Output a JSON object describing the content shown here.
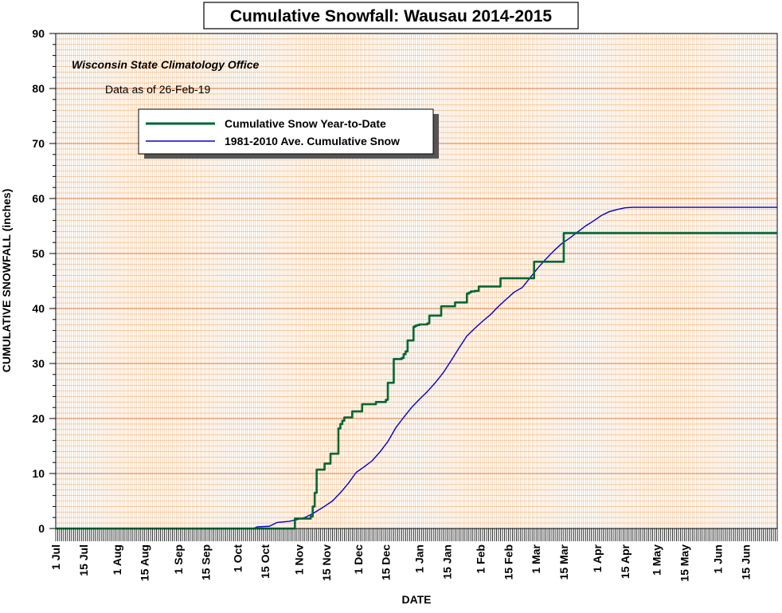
{
  "chart_data": {
    "type": "line",
    "title": "Cumulative Snowfall: Wausau 2014-2015",
    "source": "Wisconsin State Climatology Office",
    "as_of": "Data as of 26-Feb-19",
    "xlabel": "DATE",
    "ylabel": "CUMULATIVE SNOWFALL (inches)",
    "ylim": [
      0,
      90
    ],
    "yticks": [
      0,
      10,
      20,
      30,
      40,
      50,
      60,
      70,
      80,
      90
    ],
    "x_range_days": [
      0,
      365
    ],
    "xticks": [
      {
        "label": "1 Jul",
        "day": 0
      },
      {
        "label": "15 Jul",
        "day": 14
      },
      {
        "label": "1 Aug",
        "day": 31
      },
      {
        "label": "15 Aug",
        "day": 45
      },
      {
        "label": "1 Sep",
        "day": 62
      },
      {
        "label": "15 Sep",
        "day": 76
      },
      {
        "label": "1 Oct",
        "day": 92
      },
      {
        "label": "15 Oct",
        "day": 106
      },
      {
        "label": "1 Nov",
        "day": 123
      },
      {
        "label": "15 Nov",
        "day": 137
      },
      {
        "label": "1 Dec",
        "day": 153
      },
      {
        "label": "15 Dec",
        "day": 167
      },
      {
        "label": "1 Jan",
        "day": 184
      },
      {
        "label": "15 Jan",
        "day": 198
      },
      {
        "label": "1 Feb",
        "day": 215
      },
      {
        "label": "15 Feb",
        "day": 229
      },
      {
        "label": "1 Mar",
        "day": 243
      },
      {
        "label": "15 Mar",
        "day": 257
      },
      {
        "label": "1 Apr",
        "day": 274
      },
      {
        "label": "15 Apr",
        "day": 288
      },
      {
        "label": "1 May",
        "day": 304
      },
      {
        "label": "15 May",
        "day": 318
      },
      {
        "label": "1 Jun",
        "day": 335
      },
      {
        "label": "15 Jun",
        "day": 349
      }
    ],
    "grid": true,
    "legend_position": "upper-left",
    "background_color": "#ffffff",
    "grid_major_color": "#e07a3a",
    "grid_minor_color": "#f3b47a",
    "series": [
      {
        "name": "Cumulative Snow Year-to-Date",
        "color": "#006633",
        "step": true,
        "points": [
          [
            0,
            0
          ],
          [
            121,
            0
          ],
          [
            121,
            1.8
          ],
          [
            129,
            2.2
          ],
          [
            130,
            4
          ],
          [
            131,
            6.5
          ],
          [
            132,
            10.7
          ],
          [
            135,
            10.7
          ],
          [
            136,
            11.8
          ],
          [
            138,
            11.8
          ],
          [
            139,
            13.6
          ],
          [
            142,
            13.6
          ],
          [
            143,
            18.2
          ],
          [
            144,
            19
          ],
          [
            145,
            19.6
          ],
          [
            146,
            20.2
          ],
          [
            149,
            20.2
          ],
          [
            150,
            21.3
          ],
          [
            154,
            21.3
          ],
          [
            155,
            22.6
          ],
          [
            161,
            22.6
          ],
          [
            162,
            23
          ],
          [
            166,
            23
          ],
          [
            167,
            23.4
          ],
          [
            168,
            26.5
          ],
          [
            170,
            26.5
          ],
          [
            171,
            30.8
          ],
          [
            175,
            31
          ],
          [
            176,
            31.7
          ],
          [
            177,
            32.2
          ],
          [
            178,
            34.2
          ],
          [
            180,
            34.2
          ],
          [
            181,
            36.7
          ],
          [
            182,
            36.9
          ],
          [
            183,
            37
          ],
          [
            184,
            37.1
          ],
          [
            188,
            37.3
          ],
          [
            189,
            38.7
          ],
          [
            194,
            38.7
          ],
          [
            195,
            40.4
          ],
          [
            201,
            40.4
          ],
          [
            202,
            41.1
          ],
          [
            207,
            41.1
          ],
          [
            208,
            42.7
          ],
          [
            209,
            42.9
          ],
          [
            210,
            43.1
          ],
          [
            212,
            43.2
          ],
          [
            214,
            44
          ],
          [
            224,
            44
          ],
          [
            225,
            45.5
          ],
          [
            241,
            45.5
          ],
          [
            242,
            48.5
          ],
          [
            256,
            48.5
          ],
          [
            257,
            53.7
          ],
          [
            365,
            53.7
          ]
        ]
      },
      {
        "name": "1981-2010 Ave. Cumulative Snow",
        "color": "#0000cc",
        "step": false,
        "points": [
          [
            0,
            0
          ],
          [
            100,
            0
          ],
          [
            102,
            0.3
          ],
          [
            108,
            0.4
          ],
          [
            112,
            1.1
          ],
          [
            118,
            1.3
          ],
          [
            122,
            1.6
          ],
          [
            126,
            2
          ],
          [
            130,
            2.7
          ],
          [
            135,
            3.8
          ],
          [
            140,
            5
          ],
          [
            144,
            6.5
          ],
          [
            148,
            8.2
          ],
          [
            152,
            10.2
          ],
          [
            156,
            11.2
          ],
          [
            160,
            12.3
          ],
          [
            164,
            13.9
          ],
          [
            168,
            15.8
          ],
          [
            172,
            18.3
          ],
          [
            176,
            20.2
          ],
          [
            180,
            22
          ],
          [
            184,
            23.5
          ],
          [
            188,
            24.9
          ],
          [
            192,
            26.5
          ],
          [
            196,
            28.3
          ],
          [
            200,
            30.5
          ],
          [
            204,
            32.8
          ],
          [
            208,
            35
          ],
          [
            212,
            36.4
          ],
          [
            216,
            37.7
          ],
          [
            220,
            38.9
          ],
          [
            224,
            40.4
          ],
          [
            228,
            41.7
          ],
          [
            232,
            43
          ],
          [
            236,
            43.8
          ],
          [
            240,
            45.6
          ],
          [
            244,
            47.4
          ],
          [
            248,
            49
          ],
          [
            252,
            50.5
          ],
          [
            256,
            51.8
          ],
          [
            260,
            52.8
          ],
          [
            264,
            53.9
          ],
          [
            268,
            55
          ],
          [
            272,
            55.9
          ],
          [
            276,
            56.9
          ],
          [
            280,
            57.6
          ],
          [
            284,
            58
          ],
          [
            288,
            58.3
          ],
          [
            292,
            58.4
          ],
          [
            365,
            58.4
          ]
        ]
      }
    ]
  }
}
